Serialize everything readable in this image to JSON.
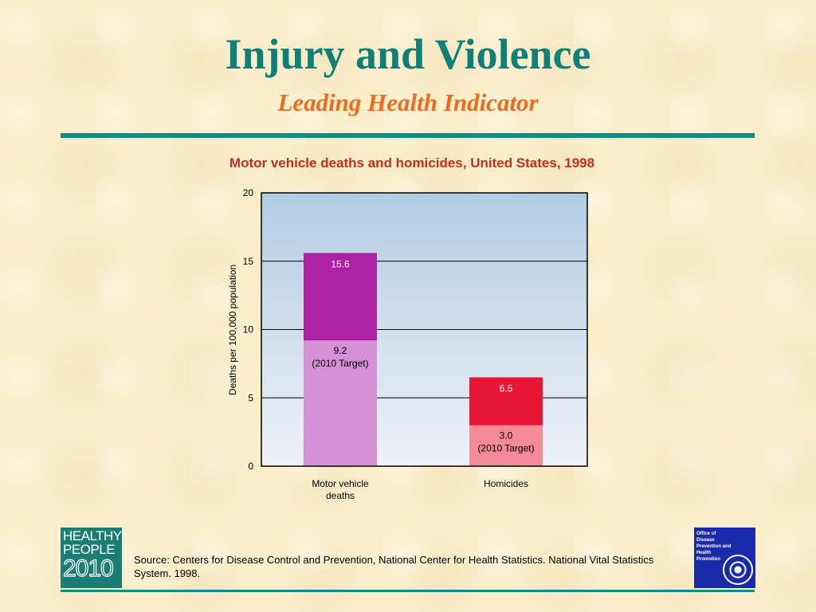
{
  "slide": {
    "title": "Injury and Violence",
    "subtitle": "Leading Health Indicator",
    "source": "Source: Centers for Disease Control and Prevention, National Center for Health Statistics. National Vital Statistics System. 1998.",
    "logo_left": {
      "line1": "HEALTHY",
      "line2": "PEOPLE",
      "line3": "2010",
      "icon": "healthy-people-2010-logo"
    },
    "logo_right": {
      "lines": [
        "Office of",
        "Disease",
        "Prevention and",
        "Health",
        "Promotion"
      ],
      "icon": "odphp-seal-logo"
    },
    "colors": {
      "title": "#0f7f7a",
      "subtitle": "#f26a1e",
      "rule": "#138b85",
      "chart_title": "#c0301a",
      "background": "#faeecb"
    }
  },
  "chart_data": {
    "type": "bar",
    "title": "Motor vehicle deaths and homicides, United States, 1998",
    "ylabel": "Deaths per 100,000 population",
    "xlabel": "",
    "ylim": [
      0,
      20
    ],
    "yticks": [
      0,
      5,
      10,
      15,
      20
    ],
    "grid": true,
    "categories": [
      "Motor vehicle deaths",
      "Homicides"
    ],
    "category_lines": [
      [
        "Motor vehicle",
        "deaths"
      ],
      [
        "Homicides"
      ]
    ],
    "bars": [
      {
        "category": "Motor vehicle deaths",
        "value": 15.6,
        "value_label": "15.6",
        "target": 9.2,
        "target_label": [
          "9.2",
          "(2010 Target)"
        ],
        "color": "#ab22a4",
        "target_color": "#d890d4"
      },
      {
        "category": "Homicides",
        "value": 6.5,
        "value_label": "6.5",
        "target": 3.0,
        "target_label": [
          "3.0",
          "(2010 Target)"
        ],
        "color": "#e81536",
        "target_color": "#f48a95"
      }
    ]
  }
}
